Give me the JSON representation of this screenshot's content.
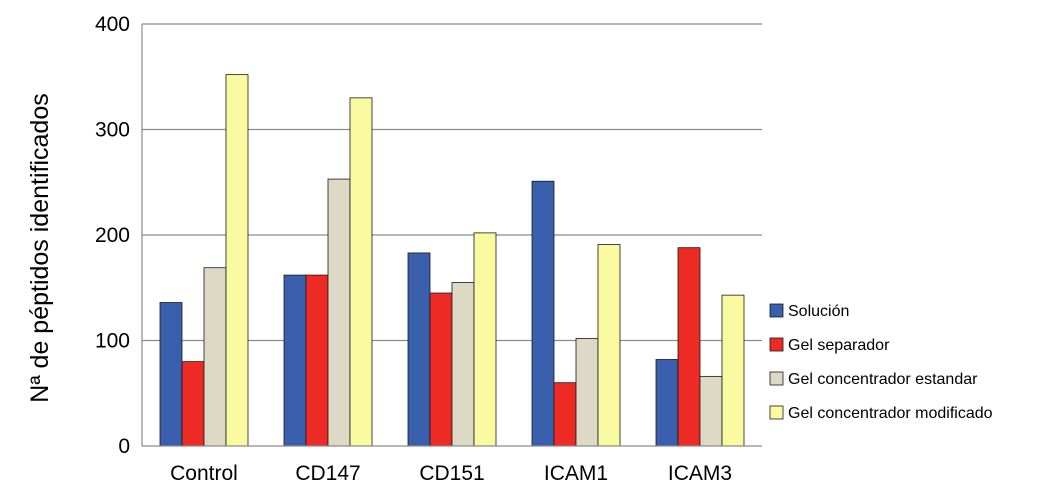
{
  "chart_data": {
    "type": "bar",
    "title": "",
    "xlabel": "",
    "ylabel": "Nª de péptidos identificados",
    "ylim": [
      0,
      400
    ],
    "yticks": [
      0,
      100,
      200,
      300,
      400
    ],
    "grid": true,
    "legend_position": "right",
    "categories": [
      "Control",
      "CD147",
      "CD151",
      "ICAM1",
      "ICAM3"
    ],
    "series": [
      {
        "name": "Solución",
        "color": "#3a5fad",
        "values": [
          136,
          162,
          183,
          251,
          82
        ]
      },
      {
        "name": "Gel separador",
        "color": "#ee2a24",
        "values": [
          80,
          162,
          145,
          60,
          188
        ]
      },
      {
        "name": "Gel concentrador estandar",
        "color": "#ddd9c4",
        "values": [
          169,
          253,
          155,
          102,
          66
        ]
      },
      {
        "name": "Gel concentrador modificado",
        "color": "#fafaa0",
        "values": [
          352,
          330,
          202,
          191,
          143
        ]
      }
    ]
  }
}
